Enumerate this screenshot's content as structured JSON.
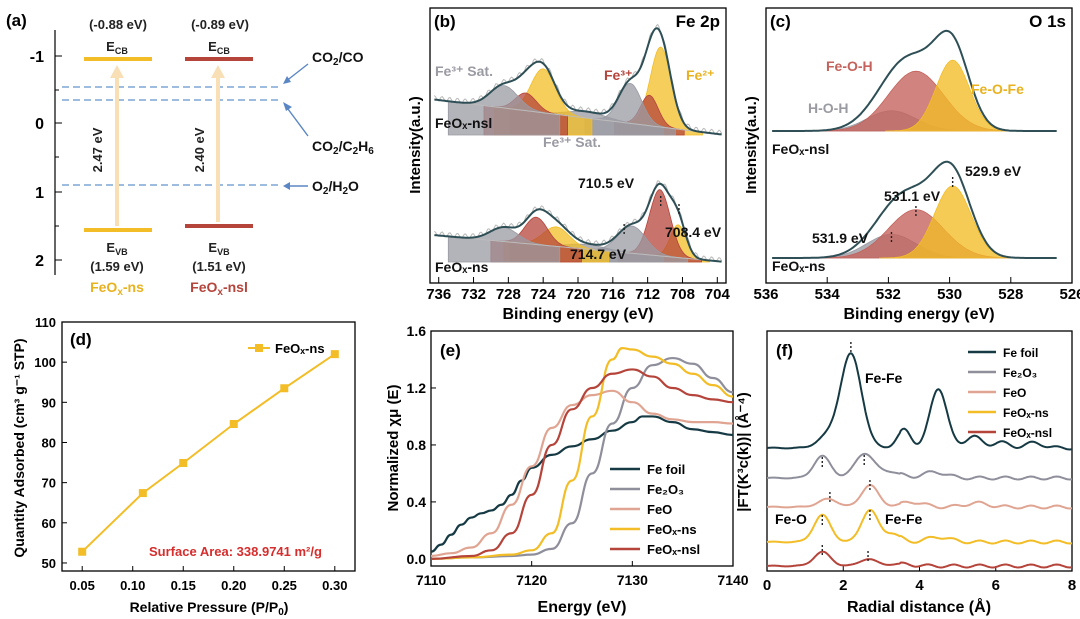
{
  "colors": {
    "ns": "#f2bd26",
    "nsl": "#b5443b",
    "dash": "#7fa6d6",
    "arrow": "#5b86c4",
    "fefoil": "#163a44",
    "fe2o3": "#8f8f9c",
    "feo": "#e0a592",
    "fit": "#2e4f56",
    "red": "#d62d2d",
    "gray": "#9a9aa3",
    "pink": "#c4625b"
  },
  "panel_a": {
    "tag": "(a)",
    "yticks": [
      "-1",
      "0",
      "1",
      "2"
    ],
    "ns": {
      "ecb_value": "(-0.88 eV)",
      "ecb_label": "E",
      "ecb_sub": "CB",
      "gap": "2.47 eV",
      "evb_label": "E",
      "evb_sub": "VB",
      "evb_value": "(1.59 eV)",
      "name_pre": "FeO",
      "name_sub": "x",
      "name_post": "-ns"
    },
    "nsl": {
      "ecb_value": "(-0.89 eV)",
      "ecb_label": "E",
      "ecb_sub": "CB",
      "gap": "2.40 eV",
      "evb_label": "E",
      "evb_sub": "VB",
      "evb_value": "(1.51 eV)",
      "name_pre": "FeO",
      "name_sub": "x",
      "name_post": "-nsl"
    },
    "potentials": [
      {
        "pre": "CO",
        "sub": "2",
        "post": "/CO"
      },
      {
        "pre": "CO",
        "sub": "2",
        "post": "/C",
        "sub2": "2",
        "post2": "H",
        "sub3": "6"
      },
      {
        "pre": "O",
        "sub": "2",
        "post": "/H",
        "sub2": "2",
        "post2": "O"
      }
    ]
  },
  "panel_b": {
    "tag": "(b)",
    "title": "Fe 2p",
    "ylabel": "Intensity(a.u.)",
    "xlabel": "Binding energy (eV)",
    "xticks": [
      "736",
      "732",
      "728",
      "724",
      "720",
      "716",
      "712",
      "708",
      "704"
    ],
    "fe3_sat_top": "Fe³⁺ Sat.",
    "fe3_sat_mid": "Fe³⁺ Sat.",
    "fe3": "Fe³⁺",
    "fe2": "Fe²⁺",
    "label_nsl": "FeOₓ-nsl",
    "label_ns": "FeOₓ-ns",
    "peak_7105": "710.5 eV",
    "peak_7084": "708.4 eV",
    "peak_7147": "714.7 eV"
  },
  "panel_c": {
    "tag": "(c)",
    "title": "O 1s",
    "ylabel": "Intensity(a.u.)",
    "xlabel": "Binding energy (eV)",
    "xticks": [
      "536",
      "534",
      "532",
      "530",
      "528",
      "526"
    ],
    "feoh": "Fe-O-H",
    "hoh": "H-O-H",
    "feofe": "Fe-O-Fe",
    "label_nsl": "FeOₓ-nsl",
    "label_ns": "FeOₓ-ns",
    "peak_5311": "531.1 eV",
    "peak_5299": "529.9 eV",
    "peak_5319": "531.9 eV"
  },
  "panel_d": {
    "tag": "(d)",
    "ylabel": "Quantity Adsorbed (cm³ g⁻¹ STP)",
    "xlabel_pre": "Relative Pressure (P/P",
    "xlabel_sub": "0",
    "xlabel_post": ")",
    "legend": "FeOₓ-ns",
    "note": "Surface Area: 338.9741 m²/g",
    "xticks": [
      "0.05",
      "0.10",
      "0.15",
      "0.20",
      "0.25",
      "0.30"
    ],
    "yticks": [
      "50",
      "60",
      "70",
      "80",
      "90",
      "100",
      "110"
    ]
  },
  "panel_e": {
    "tag": "(e)",
    "ylabel": "Normalized χμ (E)",
    "xlabel": "Energy (eV)",
    "xticks": [
      "7110",
      "7120",
      "7130",
      "7140"
    ],
    "yticks": [
      "0.0",
      "0.4",
      "0.8",
      "1.2",
      "1.6"
    ],
    "legend": [
      "Fe foil",
      "Fe₂O₃",
      "FeO",
      "FeOₓ-ns",
      "FeOₓ-nsl"
    ]
  },
  "panel_f": {
    "tag": "(f)",
    "ylabel": "|FT(K³c(k))| (Å⁻⁴)",
    "xlabel": "Radial distance (Å)",
    "xticks": [
      "0",
      "2",
      "4",
      "6",
      "8"
    ],
    "fefe_top": "Fe-Fe",
    "feo": "Fe-O",
    "fefe_mid": "Fe-Fe",
    "legend": [
      "Fe foil",
      "Fe₂O₃",
      "FeO",
      "FeOₓ-ns",
      "FeOₓ-nsl"
    ]
  },
  "chart_data": [
    {
      "type": "diagram",
      "panel": "a",
      "ylim": [
        2.3,
        -1.5
      ],
      "bands": [
        {
          "name": "FeOx-ns",
          "ECB": -0.88,
          "EVB": 1.59,
          "gap": 2.47
        },
        {
          "name": "FeOx-nsl",
          "ECB": -0.89,
          "EVB": 1.51,
          "gap": 2.4
        }
      ],
      "redox_potentials": [
        {
          "couple": "CO2/CO",
          "E": -0.53
        },
        {
          "couple": "CO2/C2H6",
          "E": -0.35
        },
        {
          "couple": "O2/H2O",
          "E": 0.82
        }
      ]
    },
    {
      "type": "line",
      "panel": "b",
      "xlim": [
        737,
        703
      ],
      "series": [
        {
          "name": "FeOx-nsl",
          "peaks": [
            710.5,
            711.8,
            714.7,
            719.0,
            724.0,
            726.0,
            728.0
          ]
        },
        {
          "name": "FeOx-ns",
          "peaks": [
            708.4,
            710.5,
            714.7,
            719.0,
            724.0,
            726.0,
            728.0
          ]
        }
      ]
    },
    {
      "type": "line",
      "panel": "c",
      "xlim": [
        536,
        526
      ],
      "series": [
        {
          "name": "FeOx-nsl",
          "peaks": [
            531.9,
            531.1,
            529.9
          ]
        },
        {
          "name": "FeOx-ns",
          "peaks": [
            531.9,
            531.1,
            529.9
          ]
        }
      ]
    },
    {
      "type": "line",
      "panel": "d",
      "xlim": [
        0.03,
        0.32
      ],
      "ylim": [
        48,
        110
      ],
      "series": [
        {
          "name": "FeOx-ns",
          "x": [
            0.05,
            0.11,
            0.15,
            0.2,
            0.25,
            0.3
          ],
          "y": [
            52.8,
            67.4,
            74.9,
            84.6,
            93.5,
            102.0
          ]
        }
      ]
    },
    {
      "type": "line",
      "panel": "e",
      "xlim": [
        7110,
        7140
      ],
      "ylim": [
        -0.05,
        1.6
      ],
      "series": [
        {
          "name": "Fe foil",
          "x": [
            7110,
            7111,
            7112,
            7113,
            7114,
            7115,
            7116,
            7117,
            7118,
            7119,
            7120,
            7122,
            7124,
            7126,
            7128,
            7130,
            7131,
            7132,
            7134,
            7136,
            7138,
            7140
          ],
          "y": [
            0.05,
            0.1,
            0.17,
            0.24,
            0.29,
            0.32,
            0.34,
            0.38,
            0.45,
            0.55,
            0.64,
            0.73,
            0.79,
            0.84,
            0.9,
            0.96,
            1.0,
            1.0,
            0.96,
            0.91,
            0.89,
            0.87
          ]
        },
        {
          "name": "Fe2O3",
          "x": [
            7110,
            7114,
            7118,
            7120,
            7122,
            7124,
            7126,
            7128,
            7130,
            7132,
            7134,
            7136,
            7138,
            7140
          ],
          "y": [
            0.0,
            0.01,
            0.02,
            0.03,
            0.07,
            0.25,
            0.6,
            0.95,
            1.2,
            1.36,
            1.41,
            1.37,
            1.27,
            1.17
          ]
        },
        {
          "name": "FeO",
          "x": [
            7110,
            7112,
            7114,
            7116,
            7118,
            7120,
            7122,
            7124,
            7126,
            7128,
            7130,
            7132,
            7134,
            7136,
            7138,
            7140
          ],
          "y": [
            0.02,
            0.04,
            0.08,
            0.18,
            0.38,
            0.65,
            0.92,
            1.08,
            1.15,
            1.18,
            1.1,
            1.02,
            0.98,
            0.96,
            0.96,
            0.95
          ]
        },
        {
          "name": "FeOx-ns",
          "x": [
            7110,
            7114,
            7118,
            7120,
            7122,
            7124,
            7126,
            7128,
            7129,
            7130,
            7132,
            7134,
            7136,
            7138,
            7140
          ],
          "y": [
            0.0,
            0.01,
            0.03,
            0.06,
            0.18,
            0.55,
            1.0,
            1.4,
            1.48,
            1.47,
            1.42,
            1.37,
            1.3,
            1.22,
            1.14
          ]
        },
        {
          "name": "FeOx-nsl",
          "x": [
            7110,
            7114,
            7116,
            7118,
            7120,
            7122,
            7124,
            7126,
            7128,
            7130,
            7132,
            7134,
            7136,
            7138,
            7140
          ],
          "y": [
            0.0,
            0.02,
            0.06,
            0.18,
            0.45,
            0.8,
            1.05,
            1.2,
            1.3,
            1.33,
            1.28,
            1.2,
            1.15,
            1.12,
            1.1
          ]
        }
      ]
    },
    {
      "type": "line",
      "panel": "f",
      "xlim": [
        0,
        8
      ],
      "annotations": [
        {
          "label": "Fe-Fe",
          "x": 2.2,
          "series": "Fe foil"
        },
        {
          "label": "Fe-O",
          "x": 1.45,
          "series": "FeOx-ns"
        },
        {
          "label": "Fe-Fe",
          "x": 2.65,
          "series": "FeOx-ns"
        }
      ],
      "series": [
        {
          "name": "Fe foil",
          "main_peaks_x": [
            2.2,
            3.6,
            4.5,
            5.4
          ]
        },
        {
          "name": "Fe2O3",
          "main_peaks_x": [
            1.45,
            2.55
          ]
        },
        {
          "name": "FeO",
          "main_peaks_x": [
            1.6,
            2.7
          ]
        },
        {
          "name": "FeOx-ns",
          "main_peaks_x": [
            1.45,
            2.65
          ]
        },
        {
          "name": "FeOx-nsl",
          "main_peaks_x": [
            1.45,
            2.65
          ]
        }
      ]
    }
  ]
}
